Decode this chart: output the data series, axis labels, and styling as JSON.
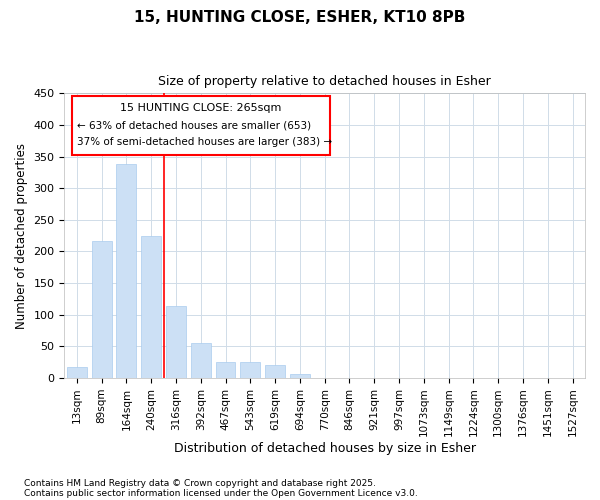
{
  "title1": "15, HUNTING CLOSE, ESHER, KT10 8PB",
  "title2": "Size of property relative to detached houses in Esher",
  "xlabel": "Distribution of detached houses by size in Esher",
  "ylabel": "Number of detached properties",
  "categories": [
    "13sqm",
    "89sqm",
    "164sqm",
    "240sqm",
    "316sqm",
    "392sqm",
    "467sqm",
    "543sqm",
    "619sqm",
    "694sqm",
    "770sqm",
    "846sqm",
    "921sqm",
    "997sqm",
    "1073sqm",
    "1149sqm",
    "1224sqm",
    "1300sqm",
    "1376sqm",
    "1451sqm",
    "1527sqm"
  ],
  "values": [
    17,
    217,
    338,
    224,
    113,
    55,
    26,
    25,
    20,
    7,
    0,
    0,
    0,
    0,
    0,
    0,
    0,
    0,
    0,
    0,
    0
  ],
  "bar_color": "#cce0f5",
  "bar_edge_color": "#aaccee",
  "property_line_x": 3.5,
  "annotation_title": "15 HUNTING CLOSE: 265sqm",
  "annotation_line1": "← 63% of detached houses are smaller (653)",
  "annotation_line2": "37% of semi-detached houses are larger (383) →",
  "ylim": [
    0,
    450
  ],
  "yticks": [
    0,
    50,
    100,
    150,
    200,
    250,
    300,
    350,
    400,
    450
  ],
  "footnote1": "Contains HM Land Registry data © Crown copyright and database right 2025.",
  "footnote2": "Contains public sector information licensed under the Open Government Licence v3.0.",
  "bg_color": "#ffffff",
  "grid_color": "#d0dce8"
}
